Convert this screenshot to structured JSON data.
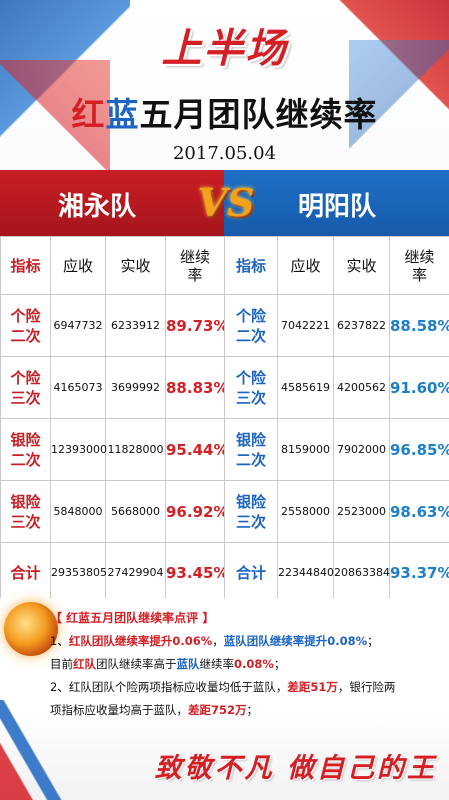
{
  "brand": "上半场",
  "title": {
    "part_red": "红",
    "part_blue": "蓝",
    "rest": "五月团队继续率"
  },
  "date": "2017.05.04",
  "vs": "VS",
  "teams": {
    "left": "湘永队",
    "right": "明阳队"
  },
  "headers": {
    "metric": "指标",
    "receivable": "应收",
    "received": "实收",
    "rate_l1": "继续",
    "rate_l2": "率"
  },
  "left_rows": [
    {
      "l1": "个险",
      "l2": "二次",
      "receivable": "6947732",
      "received": "6233912",
      "rate": "89.73%"
    },
    {
      "l1": "个险",
      "l2": "三次",
      "receivable": "4165073",
      "received": "3699992",
      "rate": "88.83%"
    },
    {
      "l1": "银险",
      "l2": "二次",
      "receivable": "12393000",
      "received": "11828000",
      "rate": "95.44%"
    },
    {
      "l1": "银险",
      "l2": "三次",
      "receivable": "5848000",
      "received": "5668000",
      "rate": "96.92%"
    }
  ],
  "left_total": {
    "label": "合计",
    "receivable": "29353805",
    "received": "27429904",
    "rate": "93.45%"
  },
  "right_rows": [
    {
      "l1": "个险",
      "l2": "二次",
      "receivable": "7042221",
      "received": "6237822",
      "rate": "88.58%"
    },
    {
      "l1": "个险",
      "l2": "三次",
      "receivable": "4585619",
      "received": "4200562",
      "rate": "91.60%"
    },
    {
      "l1": "银险",
      "l2": "二次",
      "receivable": "8159000",
      "received": "7902000",
      "rate": "96.85%"
    },
    {
      "l1": "银险",
      "l2": "三次",
      "receivable": "2558000",
      "received": "2523000",
      "rate": "98.63%"
    }
  ],
  "right_total": {
    "label": "合计",
    "receivable": "22344840",
    "received": "20863384",
    "rate": "93.37%"
  },
  "comment": {
    "heading": "【 红蓝五月团队继续率点评 】",
    "l1a": "1、",
    "l1b": "红队团队继续率提升",
    "l1c": "0.06%",
    "l1d": "，",
    "l1e": "蓝队团队继续率提升",
    "l1f": "0.08%",
    "l1g": "；",
    "l2a": "目前",
    "l2b": "红队",
    "l2c": "团队继续率高于",
    "l2d": "蓝队",
    "l2e": "继续率",
    "l2f": "0.08%",
    "l2g": "；",
    "l3a": "2、红队团队个险两项指标应收量均低于蓝队，",
    "l3b": "差距51万",
    "l3c": "，银行险两",
    "l4a": "项指标应收量均高于蓝队，",
    "l4b": "差距752万",
    "l4c": "；"
  },
  "slogan": "致敬不凡 做自己的王"
}
